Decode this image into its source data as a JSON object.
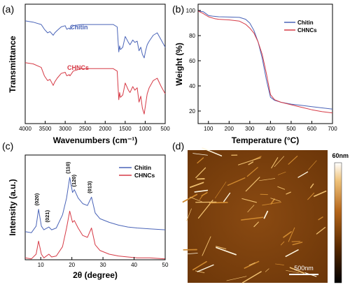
{
  "chart_data": [
    {
      "type": "line",
      "panel_label": "(a)",
      "xlabel": "Wavenumbers (cm⁻¹)",
      "ylabel": "Transmittance",
      "xlim": [
        4000,
        500
      ],
      "xticks": [
        4000,
        3500,
        3000,
        2500,
        2000,
        1500,
        1000,
        500
      ],
      "show_yticks": false,
      "series": [
        {
          "name": "Chitin",
          "color": "#4a64b8",
          "x": [
            4000,
            3800,
            3600,
            3520,
            3440,
            3380,
            3300,
            3260,
            3200,
            3100,
            3000,
            2960,
            2900,
            2880,
            2800,
            2600,
            2400,
            2200,
            2000,
            1800,
            1700,
            1660,
            1640,
            1620,
            1560,
            1500,
            1420,
            1380,
            1310,
            1260,
            1200,
            1155,
            1110,
            1070,
            1025,
            990,
            950,
            900,
            800,
            700,
            600,
            500
          ],
          "y": [
            8.6,
            8.5,
            8.3,
            7.9,
            7.6,
            7.7,
            7.4,
            7.6,
            7.8,
            8.1,
            8.2,
            7.9,
            8.0,
            7.9,
            8.2,
            8.3,
            8.3,
            8.3,
            8.3,
            8.3,
            8.1,
            6.0,
            6.5,
            6.2,
            6.4,
            7.3,
            6.8,
            6.6,
            7.0,
            6.8,
            6.9,
            6.1,
            6.4,
            5.8,
            5.5,
            6.1,
            6.6,
            6.9,
            7.4,
            7.6,
            7.0,
            6.4
          ]
        },
        {
          "name": "CHNCs",
          "color": "#d63a46",
          "x": [
            4000,
            3800,
            3600,
            3520,
            3440,
            3380,
            3300,
            3260,
            3200,
            3100,
            3000,
            2960,
            2900,
            2880,
            2800,
            2600,
            2400,
            2200,
            2000,
            1800,
            1700,
            1660,
            1640,
            1620,
            1560,
            1500,
            1420,
            1380,
            1310,
            1260,
            1200,
            1155,
            1110,
            1070,
            1025,
            990,
            950,
            900,
            800,
            700,
            600,
            500
          ],
          "y": [
            5.1,
            5.0,
            4.7,
            4.0,
            3.6,
            3.7,
            3.2,
            3.5,
            3.8,
            4.2,
            4.3,
            4.0,
            4.1,
            4.0,
            4.4,
            4.6,
            4.6,
            4.6,
            4.6,
            4.6,
            4.4,
            2.0,
            2.6,
            2.2,
            2.4,
            3.4,
            2.8,
            2.6,
            3.1,
            2.8,
            3.0,
            1.8,
            2.3,
            1.3,
            0.8,
            1.6,
            2.5,
            3.0,
            3.6,
            3.8,
            3.1,
            2.5
          ]
        }
      ],
      "legend": "inline"
    },
    {
      "type": "line",
      "panel_label": "(b)",
      "xlabel": "Temperature (°C)",
      "ylabel": "Weight (%)",
      "xlim": [
        50,
        700
      ],
      "ylim": [
        10,
        105
      ],
      "xticks": [
        100,
        200,
        300,
        400,
        500,
        600,
        700
      ],
      "yticks": [
        20,
        40,
        60,
        80,
        100
      ],
      "series": [
        {
          "name": "Chitin",
          "color": "#4a64b8",
          "x": [
            50,
            75,
            100,
            120,
            150,
            200,
            250,
            280,
            300,
            320,
            340,
            360,
            380,
            400,
            420,
            450,
            500,
            550,
            600,
            650,
            700
          ],
          "y": [
            99.5,
            99,
            96,
            95.5,
            95,
            94.8,
            94.5,
            93,
            90,
            84,
            75,
            62,
            45,
            31,
            28.5,
            27,
            25.5,
            24.5,
            23.5,
            22.5,
            21.5
          ]
        },
        {
          "name": "CHNCs",
          "color": "#d63a46",
          "x": [
            50,
            70,
            100,
            130,
            150,
            200,
            250,
            280,
            300,
            320,
            340,
            360,
            380,
            400,
            420,
            450,
            500,
            550,
            600,
            650,
            700
          ],
          "y": [
            99.5,
            98,
            95,
            93.5,
            93,
            92.5,
            91.5,
            89,
            86,
            82,
            75,
            65,
            50,
            33,
            29,
            27,
            25,
            23,
            21,
            19.5,
            18.5
          ]
        }
      ],
      "legend": "top-right"
    },
    {
      "type": "line",
      "panel_label": "(c)",
      "xlabel": "2θ (degree)",
      "ylabel": "Intensity (a.u.)",
      "xlim": [
        5,
        50
      ],
      "xticks": [
        10,
        20,
        30,
        40,
        50
      ],
      "show_yticks": false,
      "series": [
        {
          "name": "Chitin",
          "color": "#4a64b8",
          "x": [
            5,
            7,
            8.5,
            9.3,
            10.2,
            11,
            12.6,
            13.5,
            15,
            17,
            18.3,
            19.3,
            20.2,
            20.8,
            22,
            23.5,
            25,
            26.3,
            27.5,
            29,
            32,
            35,
            38,
            41,
            45,
            50
          ],
          "y": [
            1.5,
            1.45,
            1.8,
            2.7,
            1.8,
            1.6,
            1.75,
            1.6,
            1.7,
            2.4,
            3.3,
            4.4,
            3.6,
            3.75,
            3.3,
            3.0,
            2.9,
            3.35,
            2.5,
            2.2,
            2.0,
            1.85,
            1.75,
            1.7,
            1.65,
            1.6
          ]
        },
        {
          "name": "CHNCs",
          "color": "#d63a46",
          "x": [
            5,
            7,
            8.5,
            9.3,
            10.2,
            11,
            12.6,
            13.5,
            15,
            17,
            18.3,
            19.3,
            20.2,
            20.8,
            22,
            23.5,
            25,
            26.3,
            27.5,
            29,
            32,
            35,
            38,
            41,
            45,
            50
          ],
          "y": [
            0.1,
            0.05,
            0.3,
            1.0,
            0.3,
            0.1,
            0.3,
            0.15,
            0.2,
            0.7,
            1.7,
            2.6,
            2.0,
            2.1,
            1.7,
            1.3,
            1.2,
            1.7,
            0.8,
            0.5,
            0.3,
            0.2,
            0.15,
            0.1,
            0.1,
            0.05
          ]
        }
      ],
      "annotations": [
        {
          "text": "(020)",
          "x": 9.3,
          "y": 2.9
        },
        {
          "text": "(021)",
          "x": 12.6,
          "y": 2.0
        },
        {
          "text": "(110)",
          "x": 19.3,
          "y": 4.6
        },
        {
          "text": "(120)",
          "x": 21.2,
          "y": 3.9
        },
        {
          "text": "(013)",
          "x": 26.3,
          "y": 3.55
        }
      ],
      "legend": "top-right"
    }
  ],
  "afm": {
    "panel_label": "(d)",
    "scale_bar_label": "500nm",
    "colorbar_max_label": "60nm",
    "colors": [
      "#000000",
      "#5a2a00",
      "#a85a10",
      "#e8a640",
      "#ffffff"
    ]
  }
}
